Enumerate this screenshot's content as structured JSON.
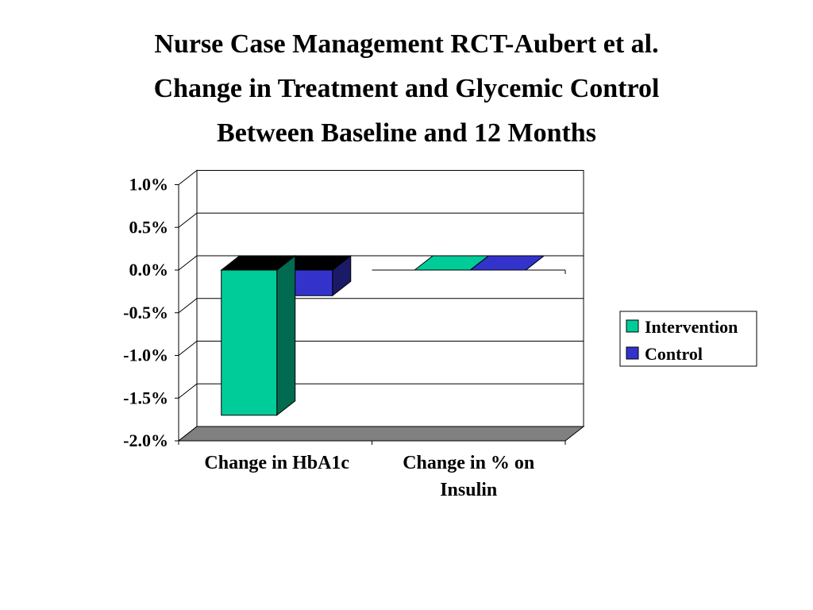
{
  "title_lines": [
    "Nurse Case Management RCT-Aubert et al.",
    "Change in Treatment and Glycemic Control",
    "Between Baseline and 12 Months"
  ],
  "chart_data": {
    "type": "bar",
    "style": "3d-clustered",
    "title": "Nurse Case Management RCT-Aubert et al. Change in Treatment and Glycemic Control Between Baseline and 12 Months",
    "categories": [
      "Change in HbA1c",
      "Change in % on Insulin"
    ],
    "category_label_lines": [
      [
        "Change in HbA1c"
      ],
      [
        "Change in % on",
        "Insulin"
      ]
    ],
    "series": [
      {
        "name": "Intervention",
        "values": [
          -1.7,
          0.0
        ],
        "color": "#00CC99",
        "side_color": "#006B50"
      },
      {
        "name": "Control",
        "values": [
          -0.3,
          0.0
        ],
        "color": "#3333CC",
        "side_color": "#1A1A66"
      }
    ],
    "yticks": [
      "1.0%",
      "0.5%",
      "0.0%",
      "-0.5%",
      "-1.0%",
      "-1.5%",
      "-2.0%"
    ],
    "ytick_values": [
      1.0,
      0.5,
      0.0,
      -0.5,
      -1.0,
      -1.5,
      -2.0
    ],
    "ylim": [
      -2.0,
      1.0
    ],
    "yunit": "%",
    "xlabel": "",
    "ylabel": "",
    "grid": true,
    "legend": "right",
    "floor_color": "#808080"
  }
}
